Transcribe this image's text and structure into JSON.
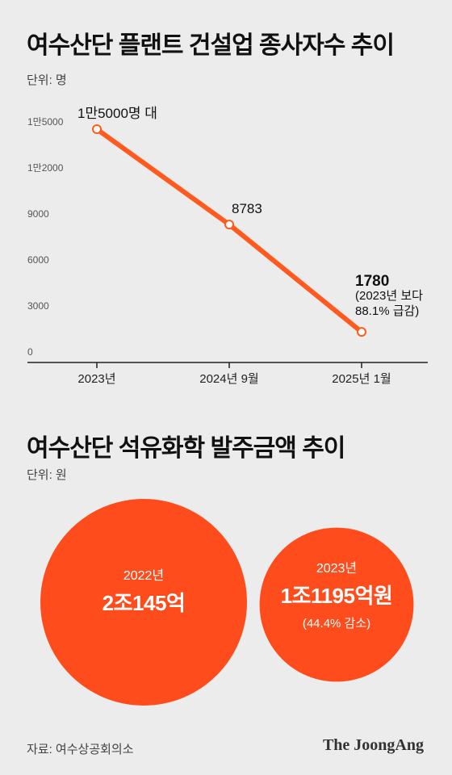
{
  "chart_data": [
    {
      "type": "line",
      "title": "여수산단 플랜트 건설업 종사자수 추이",
      "unit_label": "단위: 명",
      "y_ticks": [
        {
          "value": 0,
          "label": "0"
        },
        {
          "value": 3000,
          "label": "3000"
        },
        {
          "value": 6000,
          "label": "6000"
        },
        {
          "value": 9000,
          "label": "9000"
        },
        {
          "value": 12000,
          "label": "1만2000"
        },
        {
          "value": 15000,
          "label": "1만5000"
        }
      ],
      "ylim": [
        0,
        15000
      ],
      "categories": [
        "2023년",
        "2024년 9월",
        "2025년 1월"
      ],
      "values": [
        15000,
        8783,
        1780
      ],
      "point_labels": [
        "1만5000명 대",
        "8783",
        "1780"
      ],
      "last_point_note": [
        "(2023년 보다",
        "88.1% 급감)"
      ],
      "line_color": "#ff5a1f"
    },
    {
      "type": "bubble",
      "title": "여수산단 석유화학 발주금액 추이",
      "unit_label": "단위: 원",
      "bubbles": [
        {
          "year": "2022년",
          "value_eok": 20145,
          "label": "2조145억",
          "note": ""
        },
        {
          "year": "2023년",
          "value_eok": 11195,
          "label": "1조1195억원",
          "note": "(44.4% 감소)"
        }
      ],
      "bubble_color": "#ff4c1c"
    }
  ],
  "footer": {
    "source": "자료: 여수상공회의소",
    "brand": "The JoongAng"
  }
}
